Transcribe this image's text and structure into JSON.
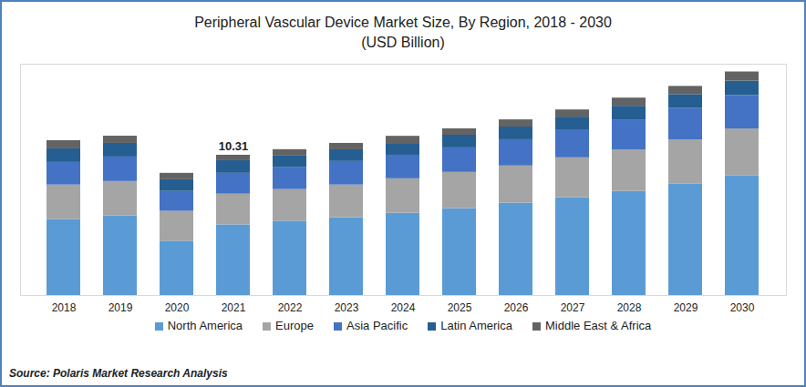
{
  "chart_data": {
    "type": "bar",
    "title": "Peripheral Vascular Device Market Size, By Region, 2018 - 2030",
    "subtitle": "(USD Billion)",
    "source": "Source: Polaris Market Research Analysis",
    "categories": [
      "2018",
      "2019",
      "2020",
      "2021",
      "2022",
      "2023",
      "2024",
      "2025",
      "2026",
      "2027",
      "2028",
      "2029",
      "2030"
    ],
    "series": [
      {
        "name": "North America",
        "color": "#5b9bd5",
        "values": [
          5.59,
          5.85,
          3.99,
          5.19,
          5.46,
          5.72,
          6.05,
          6.39,
          6.79,
          7.19,
          7.65,
          8.18,
          8.78
        ]
      },
      {
        "name": "Europe",
        "color": "#a5a5a5",
        "values": [
          2.53,
          2.53,
          2.2,
          2.26,
          2.33,
          2.4,
          2.53,
          2.66,
          2.73,
          2.93,
          3.06,
          3.26,
          3.46
        ]
      },
      {
        "name": "Asia Pacific",
        "color": "#4472c4",
        "values": [
          1.66,
          1.8,
          1.46,
          1.53,
          1.6,
          1.73,
          1.73,
          1.8,
          1.93,
          2.06,
          2.2,
          2.33,
          2.46
        ]
      },
      {
        "name": "Latin America",
        "color": "#255e91",
        "values": [
          1.0,
          1.0,
          0.86,
          0.93,
          0.86,
          0.86,
          0.86,
          0.93,
          0.93,
          0.93,
          1.0,
          1.0,
          1.06
        ]
      },
      {
        "name": "Middle East & Africa",
        "color": "#636363",
        "values": [
          0.6,
          0.53,
          0.47,
          0.4,
          0.47,
          0.47,
          0.53,
          0.47,
          0.53,
          0.53,
          0.6,
          0.6,
          0.67
        ]
      }
    ],
    "annotations": [
      {
        "category": "2021",
        "label": "10.31"
      }
    ],
    "ylim": [
      0,
      17
    ],
    "yticks": [],
    "stacked": true,
    "grid": false,
    "legend": "bottom",
    "tick_labels": "x"
  }
}
